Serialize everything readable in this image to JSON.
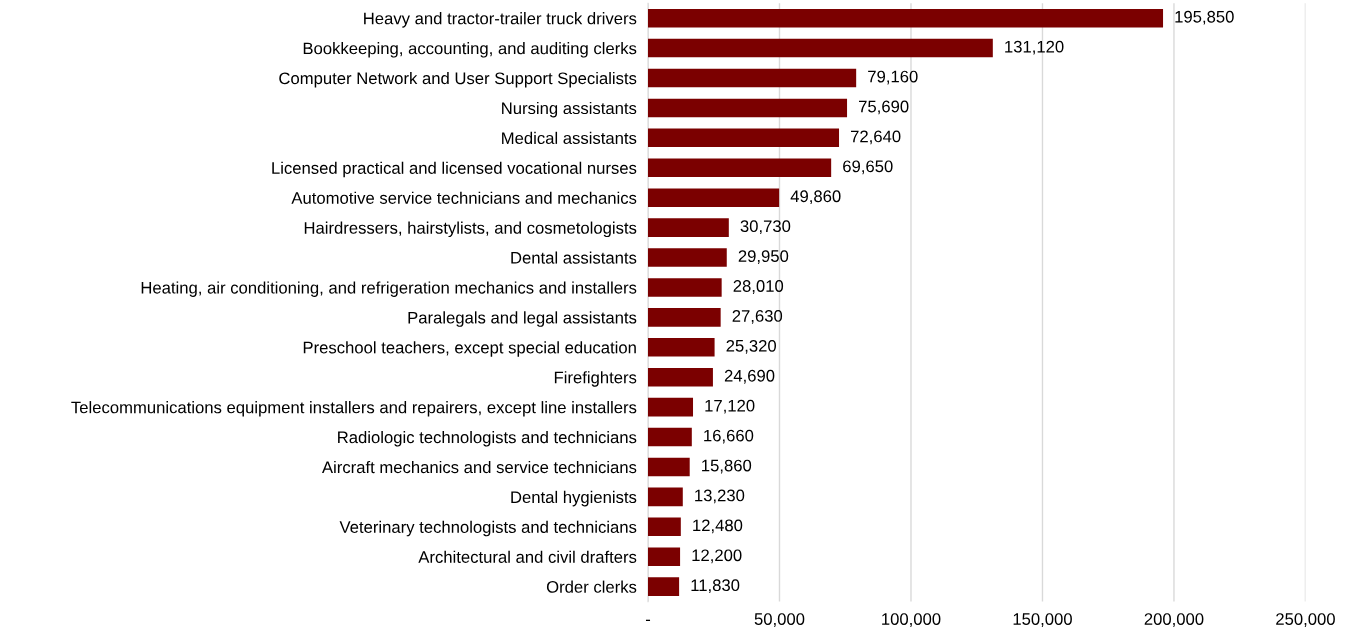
{
  "chart_data": {
    "type": "bar",
    "orientation": "horizontal",
    "categories": [
      "Heavy and tractor-trailer truck drivers",
      "Bookkeeping, accounting, and auditing clerks",
      "Computer Network and User Support Specialists",
      "Nursing assistants",
      "Medical assistants",
      "Licensed practical and licensed vocational nurses",
      "Automotive service technicians and mechanics",
      "Hairdressers, hairstylists, and cosmetologists",
      "Dental assistants",
      "Heating, air conditioning, and refrigeration mechanics and installers",
      "Paralegals and legal assistants",
      "Preschool teachers, except special education",
      "Firefighters",
      "Telecommunications equipment installers and repairers, except line installers",
      "Radiologic technologists and technicians",
      "Aircraft mechanics and service technicians",
      "Dental hygienists",
      "Veterinary technologists and technicians",
      "Architectural and civil drafters",
      "Order clerks"
    ],
    "values": [
      195850,
      131120,
      79160,
      75690,
      72640,
      69650,
      49860,
      30730,
      29950,
      28010,
      27630,
      25320,
      24690,
      17120,
      16660,
      15860,
      13230,
      12480,
      12200,
      11830
    ],
    "value_labels": [
      "195,850",
      "131,120",
      "79,160",
      "75,690",
      "72,640",
      "69,650",
      "49,860",
      "30,730",
      "29,950",
      "28,010",
      "27,630",
      "25,320",
      "24,690",
      "17,120",
      "16,660",
      "15,860",
      "13,230",
      "12,480",
      "12,200",
      "11,830"
    ],
    "color": "#7b0000",
    "xlim": [
      0,
      250000
    ],
    "xticks": [
      {
        "value": 0,
        "label": "-"
      },
      {
        "value": 50000,
        "label": "50,000"
      },
      {
        "value": 100000,
        "label": "100,000"
      },
      {
        "value": 150000,
        "label": "150,000"
      },
      {
        "value": 200000,
        "label": "200,000"
      },
      {
        "value": 250000,
        "label": "250,000"
      }
    ],
    "grid": "x",
    "legend": false
  }
}
